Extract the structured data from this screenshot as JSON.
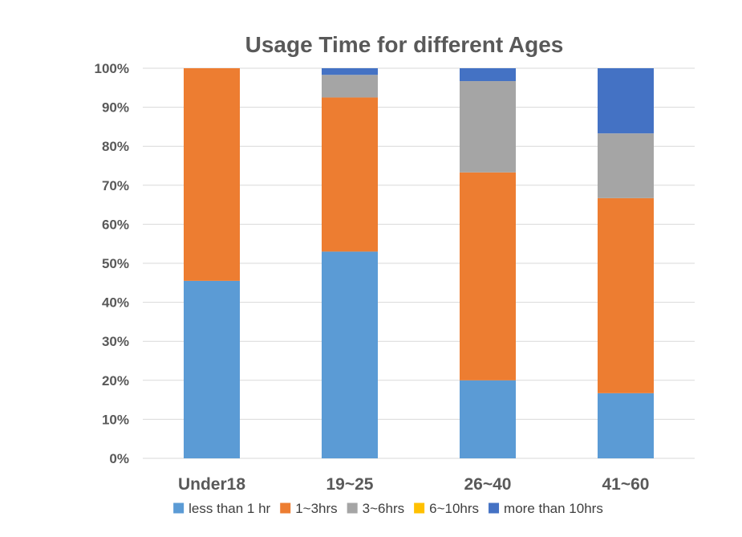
{
  "chart_data": {
    "type": "bar",
    "stacked": true,
    "percent": true,
    "title": "Usage Time for different Ages",
    "categories": [
      "Under18",
      "19~25",
      "26~40",
      "41~60"
    ],
    "ylim": [
      0,
      100
    ],
    "yticks": [
      0,
      10,
      20,
      30,
      40,
      50,
      60,
      70,
      80,
      90,
      100
    ],
    "ytick_suffix": "%",
    "grid": true,
    "legend_position": "bottom",
    "series": [
      {
        "name": "less than 1 hr",
        "color": "#5B9BD5",
        "values": [
          45.5,
          53,
          20,
          16.7
        ]
      },
      {
        "name": "1~3hrs",
        "color": "#ED7D31",
        "values": [
          54.5,
          39.5,
          53.3,
          50
        ]
      },
      {
        "name": "3~6hrs",
        "color": "#A5A5A5",
        "values": [
          0,
          5.8,
          23.4,
          16.6
        ]
      },
      {
        "name": "6~10hrs",
        "color": "#FFC000",
        "values": [
          0,
          0,
          0,
          0
        ]
      },
      {
        "name": "more than 10hrs",
        "color": "#4472C4",
        "values": [
          0,
          1.7,
          3.3,
          16.7
        ]
      }
    ]
  }
}
